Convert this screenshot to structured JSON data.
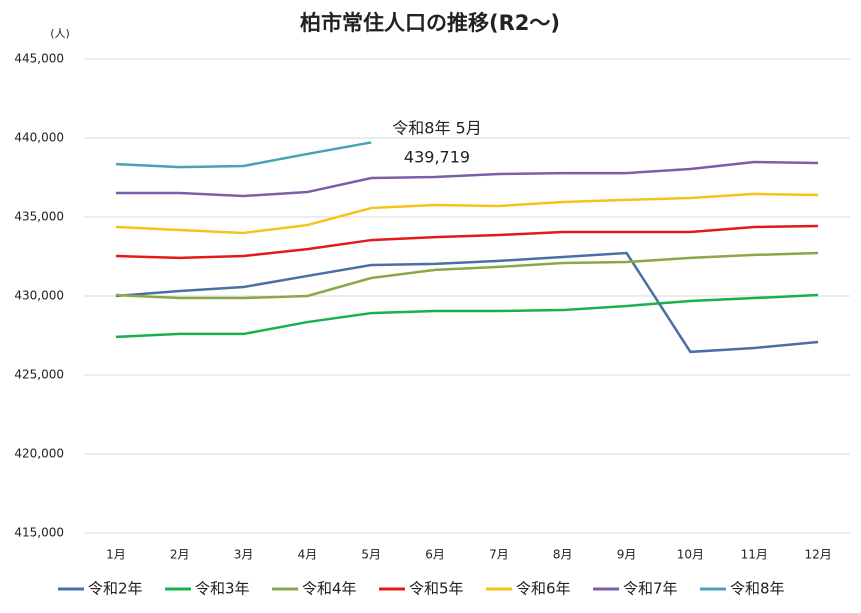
{
  "chart_data": {
    "type": "line",
    "title": "柏市常住人口の推移(R2～)",
    "y_unit": "(人)",
    "categories": [
      "1月",
      "2月",
      "3月",
      "4月",
      "5月",
      "6月",
      "7月",
      "8月",
      "9月",
      "10月",
      "11月",
      "12月"
    ],
    "series": [
      {
        "name": "令和2年",
        "color": "#4a6fa5",
        "values": [
          430000,
          430320,
          430570,
          431270,
          431960,
          432030,
          432220,
          432470,
          432720,
          426460,
          426710,
          427090
        ]
      },
      {
        "name": "令和3年",
        "color": "#16b14c",
        "values": [
          427410,
          427600,
          427600,
          428350,
          428920,
          429050,
          429050,
          429110,
          429370,
          429680,
          429870,
          430060
        ]
      },
      {
        "name": "令和4年",
        "color": "#8aa84a",
        "values": [
          430060,
          429870,
          429870,
          430000,
          431140,
          431650,
          431840,
          432090,
          432150,
          432410,
          432600,
          432720
        ]
      },
      {
        "name": "令和5年",
        "color": "#e41a1a",
        "values": [
          432530,
          432410,
          432530,
          432970,
          433540,
          433730,
          433860,
          434050,
          434050,
          434050,
          434370,
          434430
        ]
      },
      {
        "name": "令和6年",
        "color": "#f7c31a",
        "values": [
          434370,
          434180,
          433990,
          434490,
          435570,
          435760,
          435700,
          435950,
          436080,
          436200,
          436460,
          436390
        ]
      },
      {
        "name": "令和7年",
        "color": "#7b5ea7",
        "values": [
          436520,
          436520,
          436330,
          436580,
          437470,
          437530,
          437720,
          437780,
          437780,
          438040,
          438480,
          438420
        ]
      },
      {
        "name": "令和8年",
        "color": "#4aa0b5",
        "values": [
          438350,
          438160,
          438230,
          438990,
          439719,
          null,
          null,
          null,
          null,
          null,
          null,
          null
        ]
      }
    ],
    "annotation": [
      "令和8年 5月",
      "439,719"
    ],
    "ylim": [
      415000,
      445000
    ],
    "yticks": [
      {
        "value": 415000,
        "label": "415,000"
      },
      {
        "value": 420000,
        "label": "420,000"
      },
      {
        "value": 425000,
        "label": "425,000"
      },
      {
        "value": 430000,
        "label": "430,000"
      },
      {
        "value": 435000,
        "label": "435,000"
      },
      {
        "value": 440000,
        "label": "440,000"
      },
      {
        "value": 445000,
        "label": "445,000"
      }
    ],
    "grid": true,
    "legend": "bottom"
  }
}
